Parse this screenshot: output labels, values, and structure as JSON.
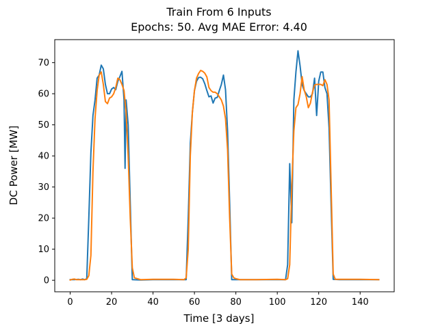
{
  "chart_data": {
    "type": "line",
    "title": "Train From 6 Inputs",
    "subtitle": "Epochs: 50. Avg MAE Error: 4.40",
    "xlabel": "Time [3 days]",
    "ylabel": "DC Power [MW]",
    "xlim": [
      -7.45,
      156.45
    ],
    "ylim": [
      -3.7,
      77.4
    ],
    "xticks": [
      0,
      20,
      40,
      60,
      80,
      100,
      120,
      140
    ],
    "yticks": [
      0,
      10,
      20,
      30,
      40,
      50,
      60,
      70
    ],
    "grid": false,
    "legend": "none",
    "series": [
      {
        "color": "#1f77b4",
        "points": [
          [
            0,
            0.2
          ],
          [
            2,
            0.2
          ],
          [
            4,
            0.3
          ],
          [
            5,
            0.2
          ],
          [
            6,
            0.4
          ],
          [
            7,
            0.2
          ],
          [
            8,
            0.5
          ],
          [
            9,
            20
          ],
          [
            10,
            41
          ],
          [
            11,
            53
          ],
          [
            12,
            58
          ],
          [
            13,
            65
          ],
          [
            14,
            66
          ],
          [
            15,
            69.2
          ],
          [
            16,
            68
          ],
          [
            17,
            63
          ],
          [
            18,
            60
          ],
          [
            19,
            60
          ],
          [
            20,
            61.5
          ],
          [
            21,
            62
          ],
          [
            22,
            61.3
          ],
          [
            23,
            64
          ],
          [
            24,
            65.5
          ],
          [
            25,
            67.2
          ],
          [
            26,
            58
          ],
          [
            26.5,
            36
          ],
          [
            27,
            58
          ],
          [
            28,
            50
          ],
          [
            29,
            25
          ],
          [
            30,
            0.2
          ],
          [
            34,
            0.1
          ],
          [
            40,
            0.2
          ],
          [
            50,
            0.2
          ],
          [
            56,
            0.2
          ],
          [
            57,
            20
          ],
          [
            58,
            44
          ],
          [
            59,
            54
          ],
          [
            60,
            61
          ],
          [
            61,
            64
          ],
          [
            62,
            65.2
          ],
          [
            63,
            65.3
          ],
          [
            64,
            64.8
          ],
          [
            65,
            63.2
          ],
          [
            66,
            61
          ],
          [
            67,
            59
          ],
          [
            68,
            59.3
          ],
          [
            69,
            57
          ],
          [
            70,
            58.6
          ],
          [
            71,
            58.8
          ],
          [
            72,
            61
          ],
          [
            73,
            63
          ],
          [
            74,
            66
          ],
          [
            75,
            61.3
          ],
          [
            76,
            48
          ],
          [
            77,
            25
          ],
          [
            78,
            0.2
          ],
          [
            79,
            0.2
          ],
          [
            85,
            0.2
          ],
          [
            95,
            0.2
          ],
          [
            104,
            0.2
          ],
          [
            105,
            5
          ],
          [
            106,
            37.5
          ],
          [
            107,
            18.5
          ],
          [
            108,
            58
          ],
          [
            109,
            67
          ],
          [
            110,
            73.8
          ],
          [
            111,
            69
          ],
          [
            112,
            63
          ],
          [
            113,
            61
          ],
          [
            114,
            60
          ],
          [
            115,
            59
          ],
          [
            116,
            59
          ],
          [
            117,
            60
          ],
          [
            118,
            65
          ],
          [
            119,
            53
          ],
          [
            120,
            64
          ],
          [
            121,
            67
          ],
          [
            122,
            67
          ],
          [
            123,
            62
          ],
          [
            124,
            60
          ],
          [
            125,
            49
          ],
          [
            126,
            24
          ],
          [
            127,
            0.3
          ],
          [
            130,
            0.2
          ],
          [
            140,
            0.2
          ],
          [
            149,
            0.2
          ]
        ]
      },
      {
        "color": "#ff7f0e",
        "points": [
          [
            0,
            0.1
          ],
          [
            1,
            0.3
          ],
          [
            2,
            0.4
          ],
          [
            3,
            0.2
          ],
          [
            4,
            0.2
          ],
          [
            5,
            0.2
          ],
          [
            6,
            0.2
          ],
          [
            7,
            0.2
          ],
          [
            8,
            0.3
          ],
          [
            9,
            1.5
          ],
          [
            10,
            8
          ],
          [
            11,
            35
          ],
          [
            12,
            52
          ],
          [
            13,
            61
          ],
          [
            14,
            66
          ],
          [
            15,
            67
          ],
          [
            16,
            63
          ],
          [
            17,
            57.5
          ],
          [
            18,
            56.8
          ],
          [
            19,
            58.6
          ],
          [
            20,
            59
          ],
          [
            21,
            60
          ],
          [
            22,
            62
          ],
          [
            23,
            65
          ],
          [
            24,
            64.5
          ],
          [
            25,
            63
          ],
          [
            26,
            61
          ],
          [
            27,
            54
          ],
          [
            28,
            40
          ],
          [
            29,
            20
          ],
          [
            30,
            4
          ],
          [
            31,
            0.8
          ],
          [
            32,
            0.6
          ],
          [
            34,
            0.2
          ],
          [
            40,
            0.3
          ],
          [
            50,
            0.3
          ],
          [
            55,
            0.2
          ],
          [
            56,
            0.8
          ],
          [
            57,
            10
          ],
          [
            58,
            40
          ],
          [
            59,
            54
          ],
          [
            60,
            61
          ],
          [
            61,
            65
          ],
          [
            62,
            66.5
          ],
          [
            63,
            67.5
          ],
          [
            64,
            67.2
          ],
          [
            65,
            66.6
          ],
          [
            66,
            65.4
          ],
          [
            67,
            62
          ],
          [
            68,
            61
          ],
          [
            69,
            60.5
          ],
          [
            70,
            60.5
          ],
          [
            71,
            60
          ],
          [
            72,
            59
          ],
          [
            73,
            58
          ],
          [
            74,
            56
          ],
          [
            75,
            52
          ],
          [
            76,
            42
          ],
          [
            77,
            20
          ],
          [
            78,
            2
          ],
          [
            79,
            0.8
          ],
          [
            80,
            0.5
          ],
          [
            82,
            0.2
          ],
          [
            90,
            0.2
          ],
          [
            100,
            0.3
          ],
          [
            104,
            0.2
          ],
          [
            105,
            0.5
          ],
          [
            106,
            5
          ],
          [
            107,
            30
          ],
          [
            108,
            48
          ],
          [
            109,
            55.5
          ],
          [
            110,
            56.5
          ],
          [
            111,
            60
          ],
          [
            112,
            65.5
          ],
          [
            113,
            61.2
          ],
          [
            114,
            59
          ],
          [
            115,
            55.5
          ],
          [
            116,
            57
          ],
          [
            117,
            60.5
          ],
          [
            118,
            62.8
          ],
          [
            119,
            63
          ],
          [
            120,
            63
          ],
          [
            121,
            63
          ],
          [
            122,
            62.6
          ],
          [
            123,
            64.5
          ],
          [
            124,
            63
          ],
          [
            125,
            58
          ],
          [
            126,
            30
          ],
          [
            127,
            2
          ],
          [
            128,
            0.3
          ],
          [
            132,
            0.3
          ],
          [
            140,
            0.3
          ],
          [
            149,
            0.2
          ]
        ]
      }
    ]
  }
}
